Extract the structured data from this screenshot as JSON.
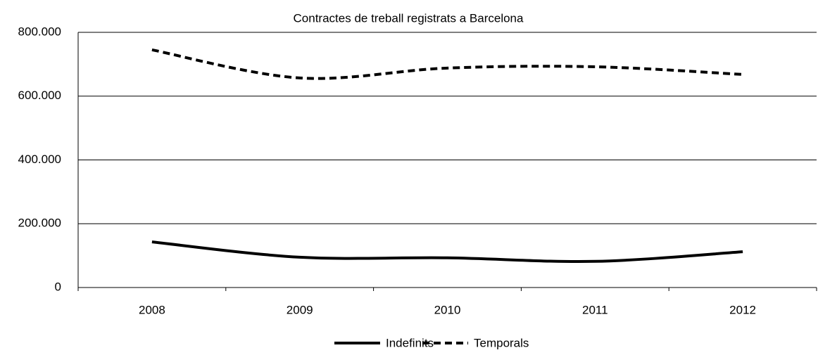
{
  "chart_data": {
    "type": "line",
    "title": "Contractes de treball registrats a Barcelona",
    "categories": [
      "2008",
      "2009",
      "2010",
      "2011",
      "2012"
    ],
    "series": [
      {
        "name": "Indefinits",
        "color": "#000000",
        "dash": "solid",
        "values": [
          143000,
          95000,
          93000,
          82000,
          112000
        ]
      },
      {
        "name": "Temporals",
        "color": "#000000",
        "dash": "dashed",
        "values": [
          745000,
          657000,
          688000,
          692000,
          668000
        ]
      }
    ],
    "ylim": [
      0,
      800000
    ],
    "yticks": [
      0,
      {
        "value": 200000,
        "label": "200.000"
      },
      {
        "value": 400000,
        "label": "400.000"
      },
      {
        "value": 600000,
        "label": "600.000"
      },
      {
        "value": 800000,
        "label": "800.000"
      }
    ],
    "grid": true,
    "smooth": true,
    "legend": "bottom"
  }
}
